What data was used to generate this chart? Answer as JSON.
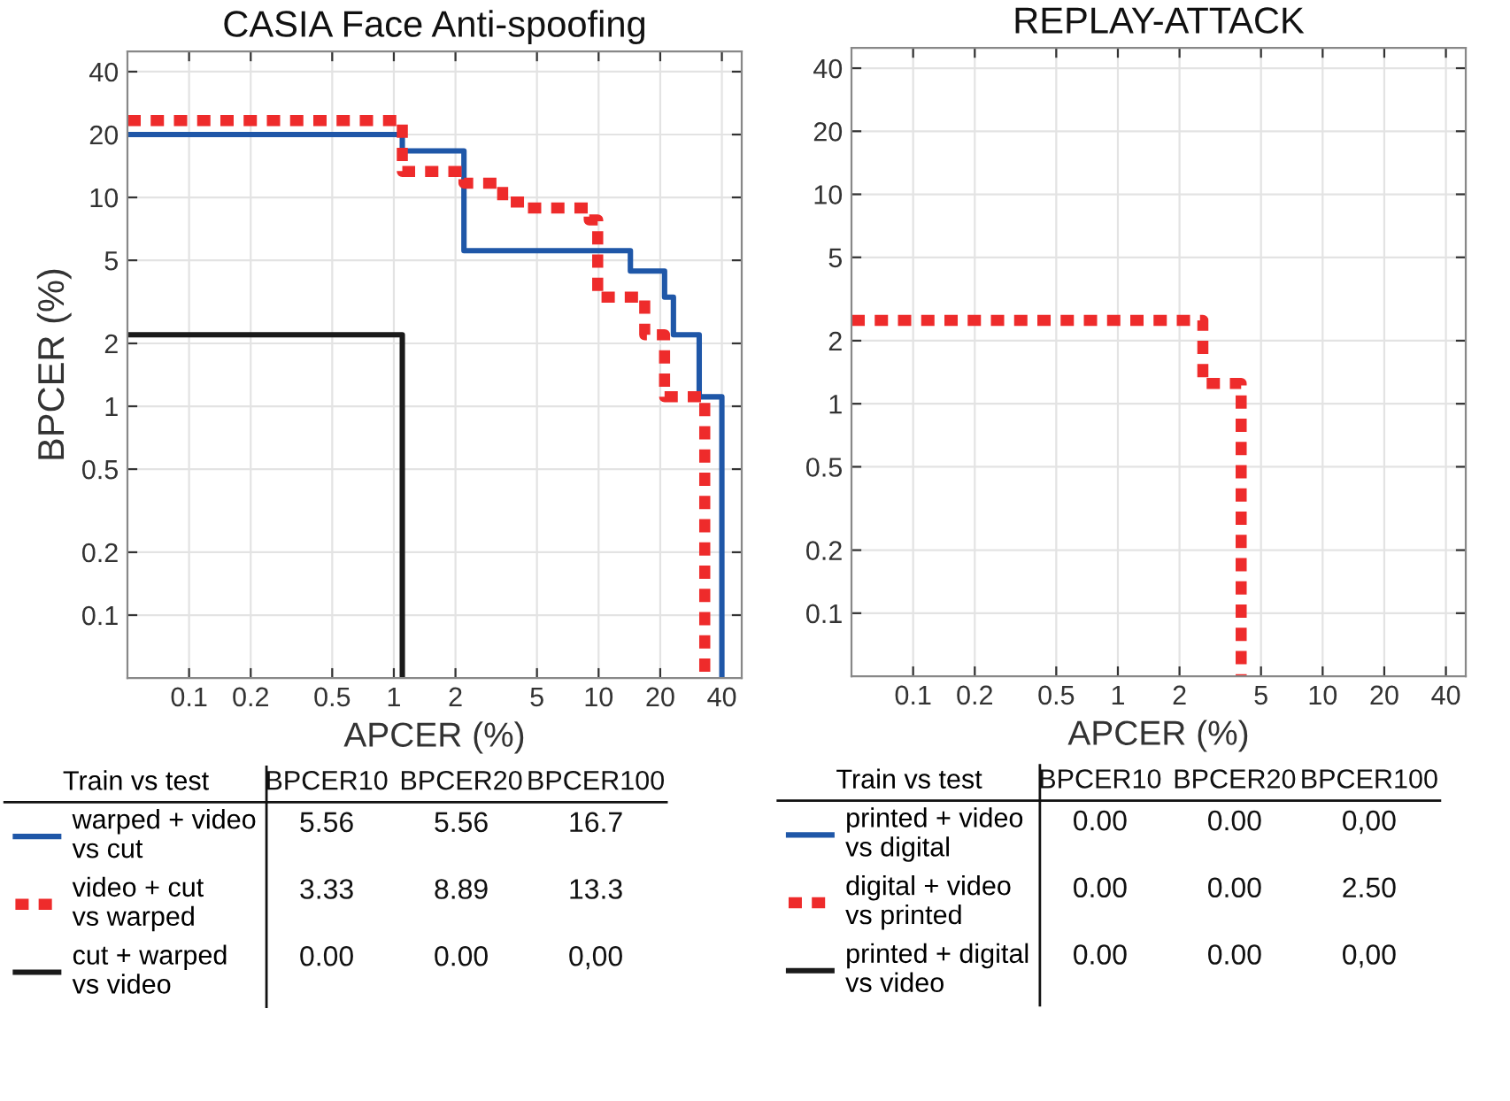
{
  "chart_data": [
    {
      "type": "line",
      "title": "CASIA Face Anti-spoofing",
      "xlabel": "APCER (%)",
      "ylabel": "BPCER (%)",
      "xlim": [
        0.05,
        50
      ],
      "ylim": [
        0.05,
        50
      ],
      "xticks": [
        0.1,
        0.2,
        0.5,
        1,
        2,
        5,
        10,
        20,
        40
      ],
      "yticks": [
        0.1,
        0.2,
        0.5,
        1,
        2,
        5,
        10,
        20,
        40
      ],
      "grid": true,
      "log": "xy",
      "legend": "bottom",
      "legend_title": "Train vs test",
      "series": [
        {
          "name": "warped + video\nvs cut",
          "color": "#1f57a8",
          "line_style": "solid",
          "x": [
            0.05,
            1.1,
            1.1,
            2.2,
            2.2,
            14.3,
            14.3,
            21,
            21,
            23.2,
            23.2,
            31,
            31,
            40,
            40
          ],
          "values": [
            20,
            20,
            16.7,
            16.7,
            5.56,
            5.56,
            4.44,
            4.44,
            3.33,
            3.33,
            2.2,
            2.2,
            1.11,
            1.11,
            0.05
          ]
        },
        {
          "name": "video + cut\nvs warped",
          "color": "#ee2b2b",
          "line_style": "dotted",
          "x": [
            0.05,
            1.1,
            1.1,
            2.2,
            2.2,
            3.4,
            3.4,
            4.4,
            4.4,
            9.0,
            9.0,
            9.9,
            9.9,
            16.8,
            16.8,
            21,
            21,
            33,
            33
          ],
          "values": [
            23.3,
            23.3,
            13.3,
            13.3,
            11.7,
            11.7,
            9.5,
            9.5,
            8.89,
            8.89,
            7.8,
            7.8,
            3.33,
            3.33,
            2.2,
            2.2,
            1.11,
            1.11,
            0.05
          ]
        },
        {
          "name": "cut + warped\nvs video",
          "color": "#1a1a1a",
          "line_style": "solid",
          "x": [
            0.05,
            1.1,
            1.1
          ],
          "values": [
            2.2,
            2.2,
            0.05
          ]
        }
      ],
      "annotations": [
        "BPCER10",
        "BPCER20",
        "BPCER100",
        "5.56",
        "5.56",
        "16.7",
        "3.33",
        "8.89",
        "13.3",
        "0.00",
        "0.00",
        "0,00"
      ]
    },
    {
      "type": "line",
      "title": "REPLAY-ATTACK",
      "xlabel": "APCER (%)",
      "xlim": [
        0.05,
        50
      ],
      "ylim": [
        0.05,
        50
      ],
      "xticks": [
        0.1,
        0.2,
        0.5,
        1,
        2,
        5,
        10,
        20,
        40
      ],
      "yticks": [
        0.1,
        0.2,
        0.5,
        1,
        2,
        5,
        10,
        20,
        40
      ],
      "grid": true,
      "log": "xy",
      "legend": "bottom",
      "legend_title": "Train vs test",
      "series": [
        {
          "name": "printed + video\nvs digital",
          "color": "#1f57a8",
          "line_style": "solid"
        },
        {
          "name": "digital + video\nvs printed",
          "color": "#ee2b2b",
          "line_style": "dotted",
          "x": [
            0.05,
            2.6,
            2.6,
            4.0,
            4.0
          ],
          "values": [
            2.5,
            2.5,
            1.25,
            1.25,
            0.05
          ]
        },
        {
          "name": "printed + digital\nvs video",
          "color": "#1a1a1a",
          "line_style": "solid"
        }
      ],
      "annotations": [
        "BPCER10",
        "BPCER20",
        "BPCER100",
        "0.00",
        "0.00",
        "0,00",
        "0.00",
        "0.00",
        "2.50",
        "0.00",
        "0.00",
        "0,00"
      ]
    }
  ]
}
